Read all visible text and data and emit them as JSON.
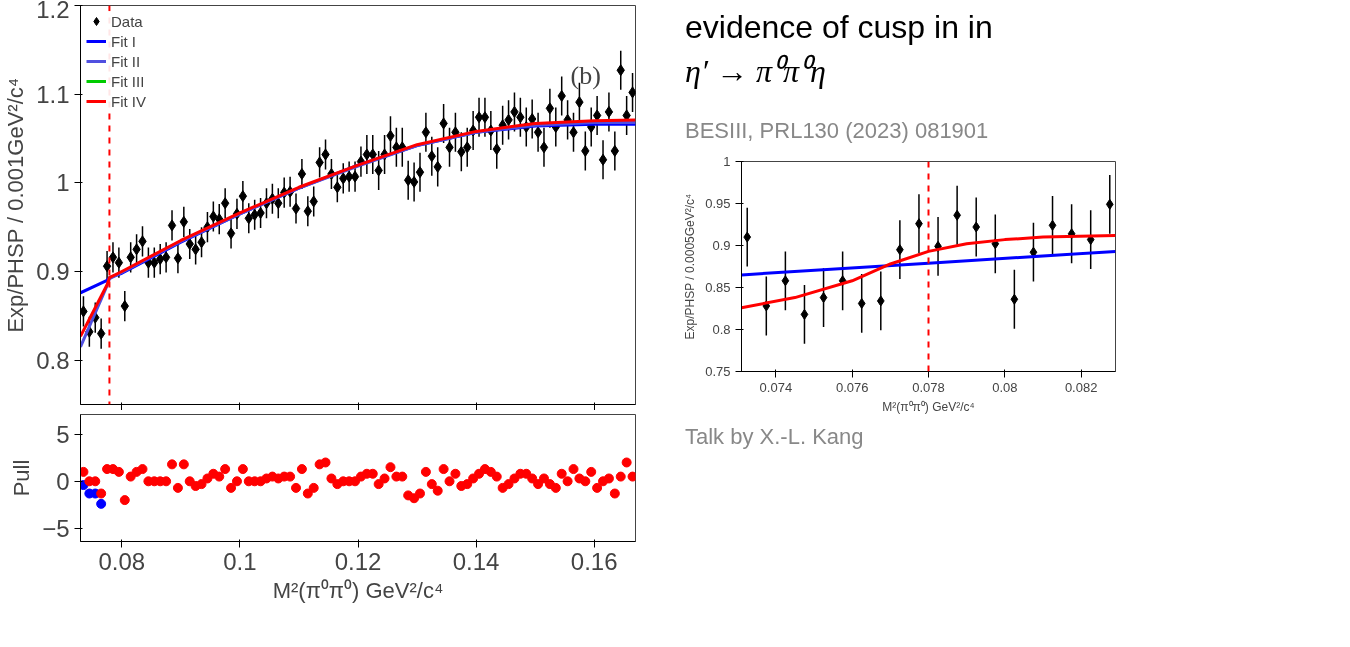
{
  "chart_data": [
    {
      "type": "scatter",
      "ylabel": "Exp/PHSP / 0.001GeV²/c⁴",
      "xlim": [
        0.073,
        0.167
      ],
      "ylim": [
        0.75,
        1.2
      ],
      "xticks": [
        0.08,
        0.1,
        0.12,
        0.14,
        0.16
      ],
      "yticks": [
        0.8,
        0.9,
        {
          "value": 1,
          "label": "1"
        },
        1.1,
        1.2
      ],
      "tick_labels": "y",
      "legend": "top left",
      "annotations": [
        "(b)"
      ],
      "ref_lines": [
        {
          "axis": "x",
          "value": 0.0779,
          "color": "#ff0000",
          "line_style": "dashed"
        }
      ],
      "x": [
        0.0735,
        0.0745,
        0.0755,
        0.0765,
        0.0775,
        0.0785,
        0.0795,
        0.0805,
        0.0815,
        0.0825,
        0.0835,
        0.0845,
        0.0855,
        0.0865,
        0.0875,
        0.0885,
        0.0895,
        0.0905,
        0.0915,
        0.0925,
        0.0935,
        0.0945,
        0.0955,
        0.0965,
        0.0975,
        0.0985,
        0.0995,
        0.1005,
        0.1015,
        0.1025,
        0.1035,
        0.1045,
        0.1055,
        0.1065,
        0.1075,
        0.1085,
        0.1095,
        0.1105,
        0.1115,
        0.1125,
        0.1135,
        0.1145,
        0.1155,
        0.1165,
        0.1175,
        0.1185,
        0.1195,
        0.1205,
        0.1215,
        0.1225,
        0.1235,
        0.1245,
        0.1255,
        0.1265,
        0.1275,
        0.1285,
        0.1295,
        0.1305,
        0.1315,
        0.1325,
        0.1335,
        0.1345,
        0.1355,
        0.1365,
        0.1375,
        0.1385,
        0.1395,
        0.1405,
        0.1415,
        0.1425,
        0.1435,
        0.1445,
        0.1455,
        0.1465,
        0.1475,
        0.1485,
        0.1495,
        0.1505,
        0.1515,
        0.1525,
        0.1535,
        0.1545,
        0.1555,
        0.1565,
        0.1575,
        0.1585,
        0.1595,
        0.1605,
        0.1615,
        0.1625,
        0.1635,
        0.1645,
        0.1655,
        0.1665
      ],
      "series": [
        {
          "name": "Data",
          "color": "#000000",
          "marker": "diamond",
          "values": [
            0.855,
            0.832,
            0.848,
            0.83,
            0.906,
            0.916,
            0.91,
            0.861,
            0.916,
            0.925,
            0.934,
            0.91,
            0.91,
            0.914,
            0.916,
            0.952,
            0.915,
            0.956,
            0.931,
            0.925,
            0.933,
            0.95,
            0.962,
            0.959,
            0.977,
            0.943,
            0.965,
            0.985,
            0.96,
            0.964,
            0.966,
            0.977,
            0.982,
            0.977,
            0.989,
            0.99,
            0.971,
            1.01,
            0.968,
            0.979,
            1.023,
            1.032,
            1.01,
            0.995,
            1.005,
            1.007,
            1.007,
            1.024,
            1.032,
            1.032,
            1.014,
            1.032,
            1.053,
            1.04,
            1.04,
            1.003,
            1.001,
            1.012,
            1.057,
            1.03,
            1.018,
            1.067,
            1.04,
            1.057,
            1.035,
            1.04,
            1.059,
            1.074,
            1.074,
            1.059,
            1.038,
            1.065,
            1.071,
            1.08,
            1.074,
            1.063,
            1.072,
            1.057,
            1.04,
            1.084,
            1.063,
            1.098,
            1.071,
            1.057,
            1.091,
            1.036,
            1.063,
            1.076,
            1.026,
            1.08,
            1.036,
            1.127,
            1.076,
            1.102
          ],
          "errors": [
            0.017,
            0.017,
            0.017,
            0.017,
            0.017,
            0.017,
            0.017,
            0.017,
            0.017,
            0.017,
            0.017,
            0.017,
            0.017,
            0.017,
            0.017,
            0.017,
            0.017,
            0.017,
            0.017,
            0.017,
            0.017,
            0.017,
            0.017,
            0.017,
            0.017,
            0.017,
            0.017,
            0.017,
            0.017,
            0.017,
            0.017,
            0.017,
            0.017,
            0.017,
            0.017,
            0.017,
            0.017,
            0.017,
            0.017,
            0.017,
            0.017,
            0.017,
            0.017,
            0.017,
            0.017,
            0.017,
            0.017,
            0.017,
            0.022,
            0.022,
            0.022,
            0.022,
            0.022,
            0.022,
            0.022,
            0.022,
            0.022,
            0.022,
            0.022,
            0.022,
            0.022,
            0.022,
            0.022,
            0.022,
            0.022,
            0.022,
            0.022,
            0.022,
            0.022,
            0.022,
            0.022,
            0.022,
            0.022,
            0.022,
            0.022,
            0.022,
            0.022,
            0.022,
            0.022,
            0.022,
            0.022,
            0.022,
            0.022,
            0.022,
            0.022,
            0.022,
            0.022,
            0.022,
            0.022,
            0.022,
            0.022,
            0.022,
            0.022,
            0.022
          ]
        },
        {
          "name": "Fit I",
          "type": "line",
          "color": "#0000ff",
          "x": [
            0.073,
            0.0775,
            0.0779,
            0.08,
            0.09,
            0.1,
            0.11,
            0.12,
            0.13,
            0.14,
            0.15,
            0.16,
            0.167
          ],
          "values": [
            0.876,
            0.89,
            0.893,
            0.898,
            0.933,
            0.965,
            0.994,
            1.02,
            1.042,
            1.057,
            1.064,
            1.066,
            1.066
          ]
        },
        {
          "name": "Fit II",
          "type": "line",
          "color": "#5050e0",
          "x": [
            0.073,
            0.0775,
            0.0779,
            0.08,
            0.09,
            0.1,
            0.11,
            0.12,
            0.13,
            0.14,
            0.15,
            0.16,
            0.167
          ],
          "values": [
            0.815,
            0.884,
            0.892,
            0.899,
            0.934,
            0.965,
            0.994,
            1.019,
            1.042,
            1.057,
            1.065,
            1.068,
            1.068
          ]
        },
        {
          "name": "Fit III",
          "type": "line",
          "color": "#00cc00",
          "values": [
            null,
            null,
            null,
            null,
            null,
            null,
            null,
            null,
            null,
            null,
            null,
            null,
            null,
            null,
            null,
            null,
            null,
            null,
            null,
            null,
            null,
            null,
            null,
            null,
            null,
            null,
            null,
            null,
            null,
            null,
            null,
            null,
            null,
            null,
            null,
            null,
            null,
            null,
            null,
            null,
            null,
            null,
            null,
            null,
            null,
            null,
            null,
            null,
            null,
            null,
            null,
            null,
            null,
            null,
            null,
            null,
            null,
            null,
            null,
            null,
            null,
            null,
            null,
            null,
            null,
            null,
            null,
            null,
            null,
            null,
            null,
            null,
            null,
            null,
            null,
            null,
            null,
            null,
            null,
            null,
            null,
            null,
            null,
            null,
            null,
            null,
            null,
            null,
            null,
            null,
            null,
            null,
            null,
            null
          ]
        },
        {
          "name": "Fit IV",
          "type": "line",
          "color": "#ff0000",
          "x": [
            0.073,
            0.0775,
            0.0779,
            0.08,
            0.09,
            0.1,
            0.11,
            0.12,
            0.13,
            0.14,
            0.15,
            0.16,
            0.167
          ],
          "values": [
            0.827,
            0.885,
            0.893,
            0.9,
            0.935,
            0.966,
            0.995,
            1.02,
            1.043,
            1.058,
            1.067,
            1.07,
            1.071
          ]
        }
      ]
    },
    {
      "type": "scatter",
      "xlabel": "M²(π⁰π⁰) GeV²/c⁴",
      "ylabel": "Exp/PHSP / 0.0005GeV²/c⁴",
      "xlim": [
        0.0731,
        0.0829
      ],
      "ylim": [
        0.75,
        1
      ],
      "xticks": [
        0.074,
        0.076,
        0.078,
        0.08,
        0.082
      ],
      "yticks": [
        0.75,
        0.8,
        0.85,
        0.9,
        0.95,
        {
          "value": 1,
          "label": "1"
        }
      ],
      "ref_lines": [
        {
          "axis": "x",
          "value": 0.078,
          "color": "#ff0000",
          "line_style": "dashed"
        }
      ],
      "x": [
        0.07325,
        0.07375,
        0.07425,
        0.07475,
        0.07525,
        0.07575,
        0.07625,
        0.07675,
        0.07725,
        0.07775,
        0.07825,
        0.07875,
        0.07925,
        0.07975,
        0.08025,
        0.08075,
        0.08125,
        0.08175,
        0.08225,
        0.08275
      ],
      "series": [
        {
          "color": "#000000",
          "marker": "diamond",
          "values": [
            0.91,
            0.828,
            0.858,
            0.818,
            0.838,
            0.858,
            0.831,
            0.834,
            0.895,
            0.926,
            0.899,
            0.936,
            0.922,
            0.902,
            0.836,
            0.892,
            0.924,
            0.914,
            0.907,
            0.949
          ],
          "errors": [
            0.035,
            0.035,
            0.035,
            0.035,
            0.035,
            0.035,
            0.035,
            0.035,
            0.035,
            0.035,
            0.035,
            0.035,
            0.035,
            0.035,
            0.035,
            0.035,
            0.035,
            0.035,
            0.035,
            0.035
          ]
        },
        {
          "type": "line",
          "color": "#0000ff",
          "x": [
            0.0731,
            0.078,
            0.0829
          ],
          "values": [
            0.865,
            0.879,
            0.893
          ]
        },
        {
          "type": "line",
          "color": "#ff0000",
          "x": [
            0.0731,
            0.0745,
            0.076,
            0.077,
            0.078,
            0.079,
            0.08,
            0.081,
            0.0829
          ],
          "values": [
            0.826,
            0.838,
            0.858,
            0.878,
            0.893,
            0.902,
            0.907,
            0.91,
            0.912
          ]
        }
      ]
    },
    {
      "type": "scatter",
      "xlabel": "M²(π⁰π⁰) GeV²/c⁴",
      "ylabel": "Pull",
      "xlim": [
        0.073,
        0.167
      ],
      "ylim": [
        -6.4,
        7.1
      ],
      "xticks": [
        0.08,
        0.1,
        0.12,
        0.14,
        0.16
      ],
      "yticks": [
        -5,
        0,
        5
      ],
      "marker": "circle",
      "x": [
        0.0735,
        0.0745,
        0.0755,
        0.0765,
        0.0775,
        0.0785,
        0.0795,
        0.0805,
        0.0815,
        0.0825,
        0.0835,
        0.0845,
        0.0855,
        0.0865,
        0.0875,
        0.0885,
        0.0895,
        0.0905,
        0.0915,
        0.0925,
        0.0935,
        0.0945,
        0.0955,
        0.0965,
        0.0975,
        0.0985,
        0.0995,
        0.1005,
        0.1015,
        0.1025,
        0.1035,
        0.1045,
        0.1055,
        0.1065,
        0.1075,
        0.1085,
        0.1095,
        0.1105,
        0.1115,
        0.1125,
        0.1135,
        0.1145,
        0.1155,
        0.1165,
        0.1175,
        0.1185,
        0.1195,
        0.1205,
        0.1215,
        0.1225,
        0.1235,
        0.1245,
        0.1255,
        0.1265,
        0.1275,
        0.1285,
        0.1295,
        0.1305,
        0.1315,
        0.1325,
        0.1335,
        0.1345,
        0.1355,
        0.1365,
        0.1375,
        0.1385,
        0.1395,
        0.1405,
        0.1415,
        0.1425,
        0.1435,
        0.1445,
        0.1455,
        0.1465,
        0.1475,
        0.1485,
        0.1495,
        0.1505,
        0.1515,
        0.1525,
        0.1535,
        0.1545,
        0.1555,
        0.1565,
        0.1575,
        0.1585,
        0.1595,
        0.1605,
        0.1615,
        0.1625,
        0.1635,
        0.1645,
        0.1655,
        0.1665
      ],
      "series": [
        {
          "color": "#0000ff",
          "values": [
            -0.4,
            -1.3,
            -1.3,
            -2.4,
            null,
            null,
            null,
            null,
            null,
            null,
            null,
            null,
            null,
            null,
            null,
            null,
            null,
            null,
            null,
            null,
            null,
            null,
            null,
            null,
            null,
            null,
            null,
            null,
            null,
            null,
            null,
            null,
            null,
            null,
            null,
            null,
            null,
            null,
            null,
            null,
            null,
            null,
            null,
            null,
            null,
            null,
            null,
            null,
            null,
            null,
            null,
            null,
            null,
            null,
            null,
            null,
            null,
            null,
            null,
            null,
            null,
            null,
            null,
            null,
            null,
            null,
            null,
            null,
            null,
            null,
            null,
            null,
            null,
            null,
            null,
            null,
            null,
            null,
            null,
            null,
            null,
            null,
            null,
            null,
            null,
            null,
            null,
            null,
            null,
            null,
            null,
            null,
            null,
            null
          ]
        },
        {
          "color": "#ff0000",
          "values": [
            1.0,
            0.0,
            0.0,
            -1.3,
            1.3,
            1.3,
            1.0,
            -2.0,
            0.5,
            1.0,
            1.3,
            0.0,
            0.0,
            0.0,
            0.0,
            1.8,
            -0.7,
            1.8,
            0.0,
            -0.5,
            -0.3,
            0.3,
            0.8,
            0.5,
            1.3,
            -0.7,
            0.0,
            1.3,
            0.0,
            0.0,
            0.0,
            0.3,
            0.5,
            0.3,
            0.5,
            0.5,
            -0.7,
            1.3,
            -1.3,
            -0.7,
            1.8,
            2.0,
            0.3,
            -0.3,
            0.0,
            0.0,
            0.0,
            0.5,
            0.8,
            0.8,
            -0.3,
            0.3,
            1.5,
            0.5,
            0.5,
            -1.5,
            -1.8,
            -1.3,
            1.0,
            -0.3,
            -1.0,
            1.3,
            0.0,
            0.8,
            -0.5,
            -0.3,
            0.3,
            0.8,
            1.3,
            1.0,
            0.5,
            -0.7,
            -0.3,
            0.3,
            0.8,
            0.8,
            0.3,
            -0.3,
            0.3,
            -0.3,
            -0.7,
            0.8,
            0.0,
            1.3,
            0.3,
            0.0,
            1.0,
            -0.7,
            0.0,
            0.3,
            -1.3,
            0.5,
            2.0,
            0.5
          ]
        }
      ]
    },
    {
      "type": "other",
      "title": "evidence of cusp in in",
      "subtitle": "η′ → π⁰π⁰η",
      "annotations": [
        "BESIII, PRL130 (2023) 081901",
        "Talk by X.-L. Kang"
      ]
    }
  ]
}
